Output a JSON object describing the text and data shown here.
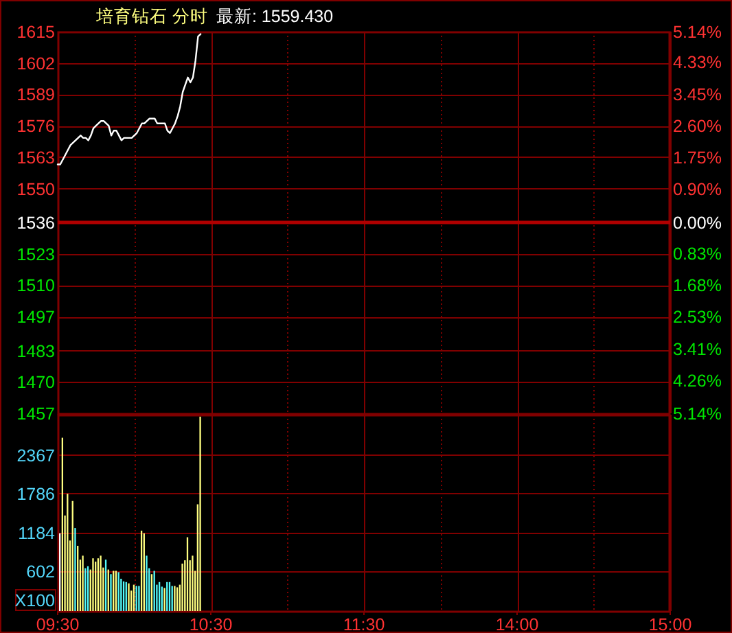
{
  "chart_data": [
    {
      "type": "line",
      "title": "培育钻石 分时",
      "subtitle": "最新: 1559.430",
      "categories": [
        null,
        null,
        null,
        null,
        null,
        null,
        null,
        null,
        null,
        null,
        null,
        null,
        null,
        null,
        null,
        null,
        null,
        null,
        null,
        null,
        null,
        null,
        null,
        null,
        null,
        null,
        null,
        null,
        null,
        null,
        null,
        null,
        null,
        null,
        null,
        null,
        null,
        null,
        null,
        null,
        null,
        null,
        null,
        null,
        null,
        null,
        null,
        null,
        null,
        null,
        null,
        null,
        null,
        null,
        null,
        null,
        null,
        null,
        null,
        null,
        null,
        null,
        null,
        null,
        null,
        null,
        null,
        null,
        null,
        null,
        null,
        null,
        null,
        null,
        null,
        null,
        null,
        null,
        null,
        null,
        null,
        null,
        null,
        null,
        null,
        null,
        null,
        null,
        null,
        null,
        null,
        null,
        null,
        null,
        null,
        null,
        null,
        null,
        null,
        null,
        null,
        null,
        null,
        null,
        null,
        null,
        null,
        null,
        null,
        null,
        null,
        null,
        null,
        null,
        null,
        null,
        null,
        null,
        null,
        null,
        null,
        null,
        null,
        null,
        null,
        null,
        null,
        null,
        null,
        null,
        null,
        null,
        null,
        null,
        null,
        null,
        null,
        null,
        null,
        null,
        null,
        null,
        null,
        null,
        null,
        null,
        null,
        null,
        null,
        null,
        null,
        null,
        null,
        null,
        null,
        null,
        null,
        null,
        null,
        null,
        null,
        null,
        null,
        null,
        null,
        null,
        null,
        null,
        null,
        null,
        null,
        null,
        null,
        null,
        null,
        null,
        null,
        null,
        null,
        null,
        null,
        null,
        null,
        null,
        null,
        null,
        null,
        null,
        null,
        null,
        null,
        null,
        null,
        null,
        null,
        null,
        null,
        null,
        null,
        null,
        null,
        null,
        null,
        null,
        null,
        null,
        null,
        null,
        null,
        null,
        null,
        null,
        null,
        null,
        null,
        null,
        null,
        null,
        null,
        null,
        null,
        null,
        null,
        null,
        null,
        null,
        null,
        null,
        null,
        null,
        null,
        null,
        null,
        null,
        null,
        null,
        null,
        null,
        null,
        null,
        null
      ],
      "series": [
        {
          "color": "#ffffff",
          "values": [
            1560,
            1560,
            1562,
            1564,
            1566,
            1568,
            1569,
            1570,
            1571,
            1572,
            1571,
            1571,
            1570,
            1572,
            1575,
            1576,
            1577,
            1578,
            1578,
            1577,
            1576,
            1572,
            1574,
            1574,
            1572,
            1570,
            1571,
            1571,
            1571,
            1571,
            1572,
            1573,
            1575,
            1577,
            1577,
            1578,
            1579,
            1579,
            1579,
            1577,
            1577,
            1577,
            1577,
            1574,
            1573,
            1575,
            1577,
            1580,
            1584,
            1590,
            1593,
            1596,
            1594,
            1596,
            1603,
            1613,
            1614,
            null,
            null,
            null,
            null,
            null,
            null,
            null,
            null,
            null,
            null,
            null,
            null,
            null,
            null,
            null,
            null,
            null,
            null,
            null,
            null,
            null,
            null,
            null,
            null,
            null,
            null,
            null,
            null,
            null,
            null,
            null,
            null,
            null,
            null,
            null,
            null,
            null,
            null,
            null,
            null,
            null,
            null,
            null,
            null,
            null,
            null,
            null,
            null,
            null,
            null,
            null,
            null,
            null,
            null,
            null,
            null,
            null,
            null,
            null,
            null,
            null,
            null,
            null,
            null,
            null,
            null,
            null,
            null,
            null,
            null,
            null,
            null,
            null,
            null,
            null,
            null,
            null,
            null,
            null,
            null,
            null,
            null,
            null,
            null,
            null,
            null,
            null,
            null,
            null,
            null,
            null,
            null,
            null,
            null,
            null,
            null,
            null,
            null,
            null,
            null,
            null,
            null,
            null,
            null,
            null,
            null,
            null,
            null,
            null,
            null,
            null,
            null,
            null,
            null,
            null,
            null,
            null,
            null,
            null,
            null,
            null,
            null,
            null,
            null,
            null,
            null,
            null,
            null,
            null,
            null,
            null,
            null,
            null,
            null,
            null,
            null,
            null,
            null,
            null,
            null,
            null,
            null,
            null,
            null,
            null,
            null,
            null,
            null,
            null,
            null,
            null,
            null,
            null,
            null,
            null,
            null,
            null,
            null,
            null,
            null,
            null,
            null,
            null,
            null,
            null,
            null,
            null,
            null,
            null,
            null,
            null,
            null,
            null,
            null,
            null,
            null,
            null,
            null,
            null,
            null,
            null,
            null,
            null,
            null
          ]
        }
      ],
      "ylim": [
        1457,
        1615
      ],
      "yticks": [
        1457,
        1470,
        1483,
        1497,
        1510,
        1523,
        1536,
        1550,
        1563,
        1576,
        1589,
        1602,
        1615
      ],
      "y2lim": [
        -5.14,
        5.14
      ],
      "y2ticks": [
        {
          "value": -5.14,
          "label": "5.14%"
        },
        {
          "value": -4.26,
          "label": "4.26%"
        },
        {
          "value": -3.41,
          "label": "3.41%"
        },
        {
          "value": -2.53,
          "label": "2.53%"
        },
        {
          "value": -1.68,
          "label": "1.68%"
        },
        {
          "value": -0.83,
          "label": "0.83%"
        },
        {
          "value": 0,
          "label": "0.00%"
        },
        {
          "value": 0.9,
          "label": "0.90%"
        },
        {
          "value": 1.75,
          "label": "1.75%"
        },
        {
          "value": 2.6,
          "label": "2.60%"
        },
        {
          "value": 3.45,
          "label": "3.45%"
        },
        {
          "value": 4.33,
          "label": "4.33%"
        },
        {
          "value": 5.14,
          "label": "5.14%"
        }
      ],
      "ref_lines": [
        {
          "axis": "y",
          "value": 1536,
          "color": "#b00000"
        }
      ],
      "grid": true,
      "tick_labels": "y"
    },
    {
      "type": "bar",
      "ylabel": "X100",
      "categories": [
        "09:30",
        null,
        null,
        null,
        null,
        null,
        null,
        null,
        null,
        null,
        null,
        null,
        null,
        null,
        null,
        null,
        null,
        null,
        null,
        null,
        null,
        null,
        null,
        null,
        null,
        null,
        null,
        null,
        null,
        null,
        null,
        null,
        null,
        null,
        null,
        null,
        null,
        null,
        null,
        null,
        null,
        null,
        null,
        null,
        null,
        null,
        null,
        null,
        null,
        null,
        null,
        null,
        null,
        null,
        null,
        null,
        null,
        null,
        null,
        null,
        "10:30",
        null,
        null,
        null,
        null,
        null,
        null,
        null,
        null,
        null,
        null,
        null,
        null,
        null,
        null,
        null,
        null,
        null,
        null,
        null,
        null,
        null,
        null,
        null,
        null,
        null,
        null,
        null,
        null,
        null,
        null,
        null,
        null,
        null,
        null,
        null,
        null,
        null,
        null,
        null,
        null,
        null,
        null,
        null,
        null,
        null,
        null,
        null,
        null,
        null,
        null,
        null,
        null,
        null,
        null,
        null,
        null,
        null,
        null,
        null,
        "11:30",
        null,
        null,
        null,
        null,
        null,
        null,
        null,
        null,
        null,
        null,
        null,
        null,
        null,
        null,
        null,
        null,
        null,
        null,
        null,
        null,
        null,
        null,
        null,
        null,
        null,
        null,
        null,
        null,
        null,
        null,
        null,
        null,
        null,
        null,
        null,
        null,
        null,
        null,
        null,
        null,
        null,
        null,
        null,
        null,
        null,
        null,
        null,
        null,
        null,
        null,
        null,
        null,
        null,
        null,
        null,
        null,
        null,
        null,
        null,
        "14:00",
        null,
        null,
        null,
        null,
        null,
        null,
        null,
        null,
        null,
        null,
        null,
        null,
        null,
        null,
        null,
        null,
        null,
        null,
        null,
        null,
        null,
        null,
        null,
        null,
        null,
        null,
        null,
        null,
        null,
        null,
        null,
        null,
        null,
        null,
        null,
        null,
        null,
        null,
        null,
        null,
        null,
        null,
        null,
        null,
        null,
        null,
        null,
        null,
        null,
        null,
        null,
        null,
        null,
        null,
        null,
        null,
        null,
        null,
        null,
        "15:00"
      ],
      "values": [
        1180,
        2630,
        1450,
        1780,
        1070,
        1670,
        1260,
        990,
        780,
        840,
        650,
        680,
        630,
        800,
        750,
        800,
        840,
        660,
        780,
        630,
        560,
        610,
        610,
        590,
        490,
        450,
        440,
        420,
        310,
        400,
        380,
        380,
        1220,
        1180,
        840,
        650,
        560,
        610,
        400,
        440,
        370,
        350,
        440,
        440,
        380,
        380,
        360,
        400,
        720,
        770,
        1120,
        770,
        840,
        610,
        1620,
        2950,
        null,
        null,
        null,
        null,
        null,
        null,
        null,
        null,
        null,
        null,
        null,
        null,
        null,
        null,
        null,
        null,
        null,
        null,
        null,
        null,
        null,
        null,
        null,
        null,
        null,
        null,
        null,
        null,
        null,
        null,
        null,
        null,
        null,
        null,
        null,
        null,
        null,
        null,
        null,
        null,
        null,
        null,
        null,
        null,
        null,
        null,
        null,
        null,
        null,
        null,
        null,
        null,
        null,
        null,
        null,
        null,
        null,
        null,
        null,
        null,
        null,
        null,
        null,
        null,
        null,
        null,
        null,
        null,
        null,
        null,
        null,
        null,
        null,
        null,
        null,
        null,
        null,
        null,
        null,
        null,
        null,
        null,
        null,
        null,
        null,
        null,
        null,
        null,
        null,
        null,
        null,
        null,
        null,
        null,
        null,
        null,
        null,
        null,
        null,
        null,
        null,
        null,
        null,
        null,
        null,
        null,
        null,
        null,
        null,
        null,
        null,
        null,
        null,
        null,
        null,
        null,
        null,
        null,
        null,
        null,
        null,
        null,
        null,
        null,
        null,
        null,
        null,
        null,
        null,
        null,
        null,
        null,
        null,
        null,
        null,
        null,
        null,
        null,
        null,
        null,
        null,
        null,
        null,
        null,
        null,
        null,
        null,
        null,
        null,
        null,
        null,
        null,
        null,
        null,
        null,
        null,
        null,
        null,
        null,
        null,
        null,
        null,
        null,
        null,
        null,
        null,
        null,
        null,
        null,
        null,
        null,
        null,
        null,
        null,
        null,
        null,
        null,
        null,
        null,
        null,
        null,
        null,
        null,
        null,
        null
      ],
      "colors": [
        "#ffffff",
        "#ffff80",
        "#ffff80",
        "#ffff80",
        "#ffff80",
        "#ffff80",
        "#54fcfc",
        "#ffff80",
        "#ffff80",
        "#ffff80",
        "#54fcfc",
        "#54fcfc",
        "#ffff80",
        "#ffff80",
        "#ffff80",
        "#ffff80",
        "#ffff80",
        "#ffff80",
        "#54fcfc",
        "#ffff80",
        "#54fcfc",
        "#ffff80",
        "#ffff80",
        "#54fcfc",
        "#54fcfc",
        "#54fcfc",
        "#54fcfc",
        "#ffff80",
        "#ffff80",
        "#ffff80",
        "#54fcfc",
        "#54fcfc",
        "#ffff80",
        "#ffff80",
        "#54fcfc",
        "#54fcfc",
        "#ffff80",
        "#54fcfc",
        "#54fcfc",
        "#54fcfc",
        "#54fcfc",
        "#ffff80",
        "#54fcfc",
        "#54fcfc",
        "#54fcfc",
        "#ffff80",
        "#ffff80",
        "#ffff80",
        "#ffff80",
        "#ffff80",
        "#ffff80",
        "#ffff80",
        "#ffff80",
        "#ffff80",
        "#ffff80",
        "#ffff80",
        null,
        null,
        null,
        null,
        null,
        null,
        null,
        null,
        null,
        null,
        null,
        null,
        null,
        null,
        null,
        null,
        null,
        null,
        null,
        null,
        null,
        null,
        null,
        null,
        null,
        null,
        null,
        null,
        null,
        null,
        null,
        null,
        null,
        null,
        null,
        null,
        null,
        null,
        null,
        null,
        null,
        null,
        null,
        null,
        null,
        null,
        null,
        null,
        null,
        null,
        null,
        null,
        null,
        null,
        null,
        null,
        null,
        null,
        null,
        null,
        null,
        null,
        null,
        null,
        null,
        null,
        null,
        null,
        null,
        null,
        null,
        null,
        null,
        null,
        null,
        null,
        null,
        null,
        null,
        null,
        null,
        null,
        null,
        null,
        null,
        null,
        null,
        null,
        null,
        null,
        null,
        null,
        null,
        null,
        null,
        null,
        null,
        null,
        null,
        null,
        null,
        null,
        null,
        null,
        null,
        null,
        null,
        null,
        null,
        null,
        null,
        null,
        null,
        null,
        null,
        null,
        null,
        null,
        null,
        null,
        null,
        null,
        null,
        null,
        null,
        null,
        null,
        null,
        null,
        null,
        null,
        null,
        null,
        null,
        null,
        null,
        null,
        null,
        null,
        null,
        null,
        null,
        null,
        null,
        null,
        null,
        null,
        null,
        null,
        null,
        null,
        null,
        null,
        null,
        null,
        null,
        null,
        null,
        null,
        null,
        null,
        null,
        null,
        null,
        null,
        null,
        null,
        null,
        null,
        null,
        null,
        null,
        null,
        null,
        null,
        null,
        null,
        null,
        null,
        null,
        null,
        null,
        null,
        null,
        null
      ],
      "ylim": [
        0,
        2980
      ],
      "yticks": [
        602,
        1184,
        1786,
        2367
      ],
      "grid": true
    }
  ]
}
